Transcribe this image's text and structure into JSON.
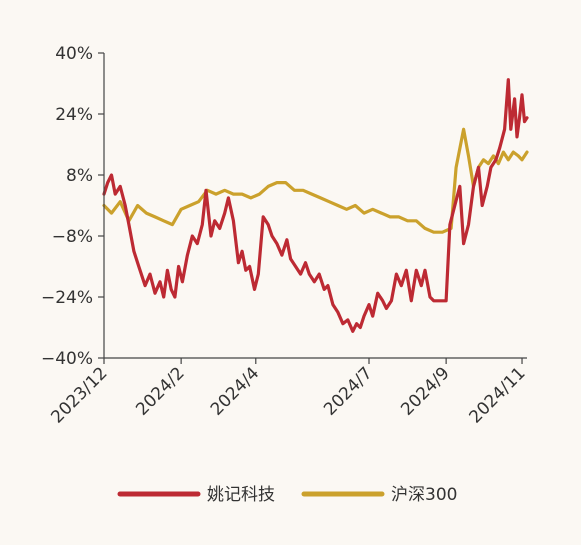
{
  "chart_data": {
    "type": "line",
    "title": "",
    "xlabel": "",
    "ylabel": "",
    "ylim": [
      -40,
      40
    ],
    "y_ticks": [
      "40%",
      "24%",
      "8%",
      "−8%",
      "−24%",
      "−40%"
    ],
    "y_tick_values": [
      40,
      24,
      8,
      -8,
      -24,
      -40
    ],
    "x_ticks": [
      "2023/12",
      "2024/2",
      "2024/4",
      "2024/7",
      "2024/9",
      "2024/11"
    ],
    "x_tick_values": [
      "2023-12-01",
      "2024-02-01",
      "2024-04-01",
      "2024-07-01",
      "2024-09-01",
      "2024-11-01"
    ],
    "xlim": [
      "2023-12-01",
      "2024-11-05"
    ],
    "grid": false,
    "legend_position": "bottom",
    "series": [
      {
        "name": "姚记科技",
        "color": "#bd2a33",
        "points": [
          [
            "2023-12-01",
            3
          ],
          [
            "2023-12-04",
            6
          ],
          [
            "2023-12-07",
            8
          ],
          [
            "2023-12-10",
            3
          ],
          [
            "2023-12-14",
            5
          ],
          [
            "2023-12-18",
            0
          ],
          [
            "2023-12-21",
            -5
          ],
          [
            "2023-12-25",
            -12
          ],
          [
            "2023-12-29",
            -16
          ],
          [
            "2024-01-03",
            -21
          ],
          [
            "2024-01-07",
            -18
          ],
          [
            "2024-01-11",
            -23
          ],
          [
            "2024-01-15",
            -20
          ],
          [
            "2024-01-18",
            -24
          ],
          [
            "2024-01-21",
            -17
          ],
          [
            "2024-01-24",
            -22
          ],
          [
            "2024-01-27",
            -24
          ],
          [
            "2024-01-30",
            -16
          ],
          [
            "2024-02-02",
            -20
          ],
          [
            "2024-02-06",
            -13
          ],
          [
            "2024-02-10",
            -8
          ],
          [
            "2024-02-14",
            -10
          ],
          [
            "2024-02-18",
            -5
          ],
          [
            "2024-02-21",
            4
          ],
          [
            "2024-02-25",
            -8
          ],
          [
            "2024-02-28",
            -4
          ],
          [
            "2024-03-03",
            -6
          ],
          [
            "2024-03-07",
            -2
          ],
          [
            "2024-03-10",
            2
          ],
          [
            "2024-03-14",
            -4
          ],
          [
            "2024-03-18",
            -15
          ],
          [
            "2024-03-21",
            -12
          ],
          [
            "2024-03-24",
            -17
          ],
          [
            "2024-03-27",
            -16
          ],
          [
            "2024-03-31",
            -22
          ],
          [
            "2024-04-03",
            -18
          ],
          [
            "2024-04-07",
            -3
          ],
          [
            "2024-04-11",
            -5
          ],
          [
            "2024-04-14",
            -8
          ],
          [
            "2024-04-18",
            -10
          ],
          [
            "2024-04-22",
            -13
          ],
          [
            "2024-04-26",
            -9
          ],
          [
            "2024-04-29",
            -14
          ],
          [
            "2024-05-03",
            -16
          ],
          [
            "2024-05-07",
            -18
          ],
          [
            "2024-05-11",
            -15
          ],
          [
            "2024-05-14",
            -18
          ],
          [
            "2024-05-18",
            -20
          ],
          [
            "2024-05-22",
            -18
          ],
          [
            "2024-05-26",
            -22
          ],
          [
            "2024-05-29",
            -21
          ],
          [
            "2024-06-02",
            -26
          ],
          [
            "2024-06-06",
            -28
          ],
          [
            "2024-06-10",
            -31
          ],
          [
            "2024-06-14",
            -30
          ],
          [
            "2024-06-18",
            -33
          ],
          [
            "2024-06-21",
            -31
          ],
          [
            "2024-06-24",
            -32
          ],
          [
            "2024-06-27",
            -29
          ],
          [
            "2024-07-01",
            -26
          ],
          [
            "2024-07-04",
            -29
          ],
          [
            "2024-07-08",
            -23
          ],
          [
            "2024-07-12",
            -25
          ],
          [
            "2024-07-15",
            -27
          ],
          [
            "2024-07-19",
            -25
          ],
          [
            "2024-07-23",
            -18
          ],
          [
            "2024-07-27",
            -21
          ],
          [
            "2024-07-31",
            -17
          ],
          [
            "2024-08-04",
            -25
          ],
          [
            "2024-08-08",
            -17
          ],
          [
            "2024-08-12",
            -21
          ],
          [
            "2024-08-15",
            -17
          ],
          [
            "2024-08-19",
            -24
          ],
          [
            "2024-08-22",
            -25
          ],
          [
            "2024-09-01",
            -25
          ],
          [
            "2024-09-04",
            -5
          ],
          [
            "2024-09-08",
            0
          ],
          [
            "2024-09-12",
            5
          ],
          [
            "2024-09-15",
            -10
          ],
          [
            "2024-09-19",
            -5
          ],
          [
            "2024-09-23",
            5
          ],
          [
            "2024-09-27",
            10
          ],
          [
            "2024-09-30",
            0
          ],
          [
            "2024-10-04",
            5
          ],
          [
            "2024-10-07",
            10
          ],
          [
            "2024-10-11",
            12
          ],
          [
            "2024-10-14",
            15
          ],
          [
            "2024-10-18",
            20
          ],
          [
            "2024-10-21",
            33
          ],
          [
            "2024-10-23",
            20
          ],
          [
            "2024-10-26",
            28
          ],
          [
            "2024-10-28",
            18
          ],
          [
            "2024-10-30",
            23
          ],
          [
            "2024-11-01",
            29
          ],
          [
            "2024-11-03",
            22
          ],
          [
            "2024-11-05",
            23
          ]
        ]
      },
      {
        "name": "沪深300",
        "color": "#cba12c",
        "points": [
          [
            "2023-12-01",
            0
          ],
          [
            "2023-12-07",
            -2
          ],
          [
            "2023-12-14",
            1
          ],
          [
            "2023-12-21",
            -4
          ],
          [
            "2023-12-28",
            0
          ],
          [
            "2024-01-04",
            -2
          ],
          [
            "2024-01-11",
            -3
          ],
          [
            "2024-01-18",
            -4
          ],
          [
            "2024-01-25",
            -5
          ],
          [
            "2024-02-01",
            -1
          ],
          [
            "2024-02-08",
            0
          ],
          [
            "2024-02-15",
            1
          ],
          [
            "2024-02-22",
            4
          ],
          [
            "2024-02-29",
            3
          ],
          [
            "2024-03-07",
            4
          ],
          [
            "2024-03-14",
            3
          ],
          [
            "2024-03-21",
            3
          ],
          [
            "2024-03-28",
            2
          ],
          [
            "2024-04-04",
            3
          ],
          [
            "2024-04-11",
            5
          ],
          [
            "2024-04-18",
            6
          ],
          [
            "2024-04-25",
            6
          ],
          [
            "2024-05-02",
            4
          ],
          [
            "2024-05-09",
            4
          ],
          [
            "2024-05-16",
            3
          ],
          [
            "2024-05-23",
            2
          ],
          [
            "2024-05-30",
            1
          ],
          [
            "2024-06-06",
            0
          ],
          [
            "2024-06-13",
            -1
          ],
          [
            "2024-06-20",
            0
          ],
          [
            "2024-06-27",
            -2
          ],
          [
            "2024-07-04",
            -1
          ],
          [
            "2024-07-11",
            -2
          ],
          [
            "2024-07-18",
            -3
          ],
          [
            "2024-07-25",
            -3
          ],
          [
            "2024-08-01",
            -4
          ],
          [
            "2024-08-08",
            -4
          ],
          [
            "2024-08-15",
            -6
          ],
          [
            "2024-08-22",
            -7
          ],
          [
            "2024-08-29",
            -7
          ],
          [
            "2024-09-05",
            -6
          ],
          [
            "2024-09-09",
            10
          ],
          [
            "2024-09-15",
            20
          ],
          [
            "2024-09-19",
            13
          ],
          [
            "2024-09-23",
            5
          ],
          [
            "2024-09-27",
            10
          ],
          [
            "2024-10-01",
            12
          ],
          [
            "2024-10-05",
            11
          ],
          [
            "2024-10-09",
            13
          ],
          [
            "2024-10-13",
            11
          ],
          [
            "2024-10-17",
            14
          ],
          [
            "2024-10-21",
            12
          ],
          [
            "2024-10-25",
            14
          ],
          [
            "2024-10-29",
            13
          ],
          [
            "2024-11-01",
            12
          ],
          [
            "2024-11-05",
            14
          ]
        ]
      }
    ]
  }
}
